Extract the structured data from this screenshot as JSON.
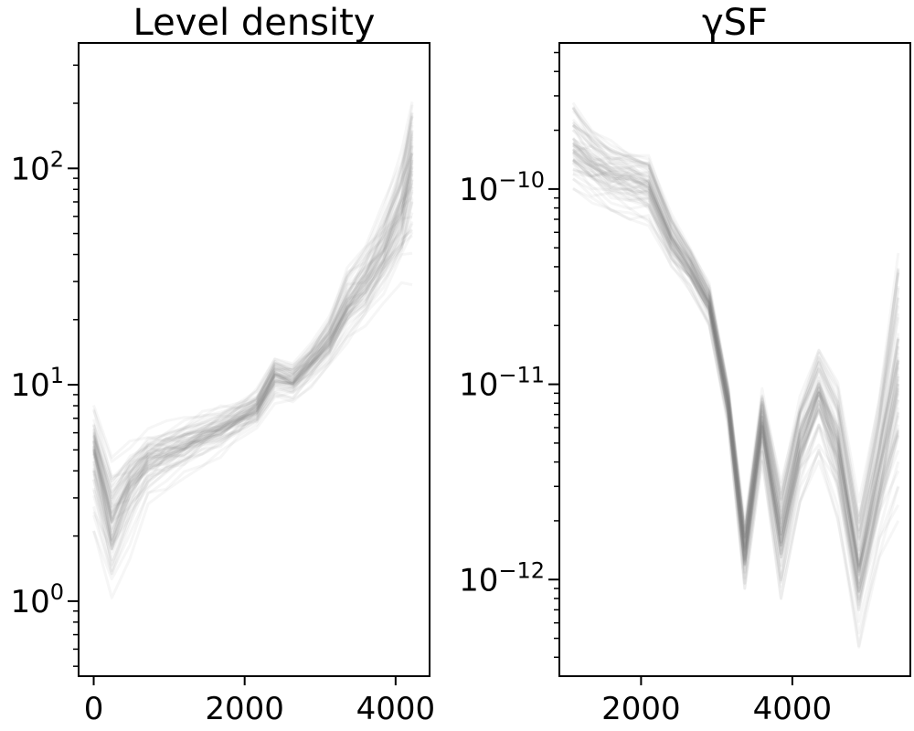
{
  "chart_data": [
    {
      "type": "line",
      "title": "Level density",
      "xlabel": "",
      "ylabel": "",
      "xlim": [
        -200,
        4450
      ],
      "ylim": [
        0.45,
        380
      ],
      "yscale": "log",
      "x_ticks": [
        0,
        2000,
        4000
      ],
      "x_tick_labels": [
        "0",
        "2000",
        "4000"
      ],
      "y_ticks": [
        1,
        10,
        100
      ],
      "y_tick_labels": [
        {
          "base": "10",
          "exp": "0"
        },
        {
          "base": "10",
          "exp": "1"
        },
        {
          "base": "10",
          "exp": "2"
        }
      ],
      "grid": false,
      "legend": "none",
      "line_color": "#7a7a7a",
      "n_samples": 60,
      "x": [
        0,
        240,
        480,
        720,
        960,
        1200,
        1440,
        1680,
        1920,
        2160,
        2400,
        2640,
        2880,
        3120,
        3360,
        3600,
        3840,
        4080,
        4220
      ],
      "median": [
        4.8,
        2.1,
        3.3,
        4.3,
        4.7,
        5.1,
        5.6,
        6.1,
        6.8,
        7.6,
        11.0,
        10.2,
        12.5,
        15.5,
        22.0,
        28.0,
        38.0,
        60.0,
        95.0
      ],
      "lower": [
        1.6,
        0.8,
        1.5,
        2.5,
        3.0,
        3.6,
        4.1,
        4.6,
        5.3,
        6.0,
        7.5,
        7.8,
        9.2,
        11.0,
        14.0,
        17.0,
        22.0,
        25.0,
        24.0
      ],
      "upper": [
        8.5,
        5.0,
        5.5,
        6.5,
        6.8,
        7.2,
        7.6,
        8.0,
        8.7,
        9.6,
        13.5,
        13.0,
        16.0,
        22.0,
        35.0,
        50.0,
        75.0,
        140.0,
        260.0
      ]
    },
    {
      "type": "line",
      "title": "γSF",
      "xlabel": "",
      "ylabel": "",
      "xlim": [
        920,
        5560
      ],
      "ylim": [
        3.2e-13,
        5.6e-10
      ],
      "yscale": "log",
      "x_ticks": [
        2000,
        4000
      ],
      "x_tick_labels": [
        "2000",
        "4000"
      ],
      "y_ticks": [
        1e-12,
        1e-11,
        1e-10
      ],
      "y_tick_labels": [
        {
          "base": "10",
          "exp": "−12"
        },
        {
          "base": "10",
          "exp": "−11"
        },
        {
          "base": "10",
          "exp": "−10"
        }
      ],
      "grid": false,
      "legend": "none",
      "line_color": "#7a7a7a",
      "n_samples": 60,
      "x": [
        1100,
        1350,
        1600,
        1850,
        2100,
        2400,
        2650,
        2900,
        3150,
        3370,
        3600,
        3850,
        4100,
        4350,
        4600,
        4880,
        5150,
        5400
      ],
      "median": [
        1.6e-10,
        1.35e-10,
        1.2e-10,
        1.15e-10,
        1.05e-10,
        5.5e-11,
        4e-11,
        2.6e-11,
        8e-12,
        1.4e-12,
        6.5e-12,
        1.7e-12,
        5e-12,
        9e-12,
        5e-12,
        1.1e-12,
        3.5e-12,
        1.1e-11
      ],
      "lower": [
        1e-10,
        8.5e-11,
        7.5e-11,
        7e-11,
        6.5e-11,
        4e-11,
        3e-11,
        2e-11,
        6e-12,
        9e-13,
        4e-12,
        8e-13,
        2.5e-12,
        4e-12,
        2e-12,
        4.5e-13,
        1.3e-12,
        2e-12
      ],
      "upper": [
        3e-10,
        2.2e-10,
        1.8e-10,
        1.6e-10,
        1.5e-10,
        7.5e-11,
        5.2e-11,
        3.3e-11,
        1e-11,
        2e-12,
        9.5e-12,
        3.2e-12,
        9e-12,
        1.6e-11,
        1.1e-11,
        2.5e-12,
        1e-11,
        5.5e-11
      ]
    }
  ]
}
